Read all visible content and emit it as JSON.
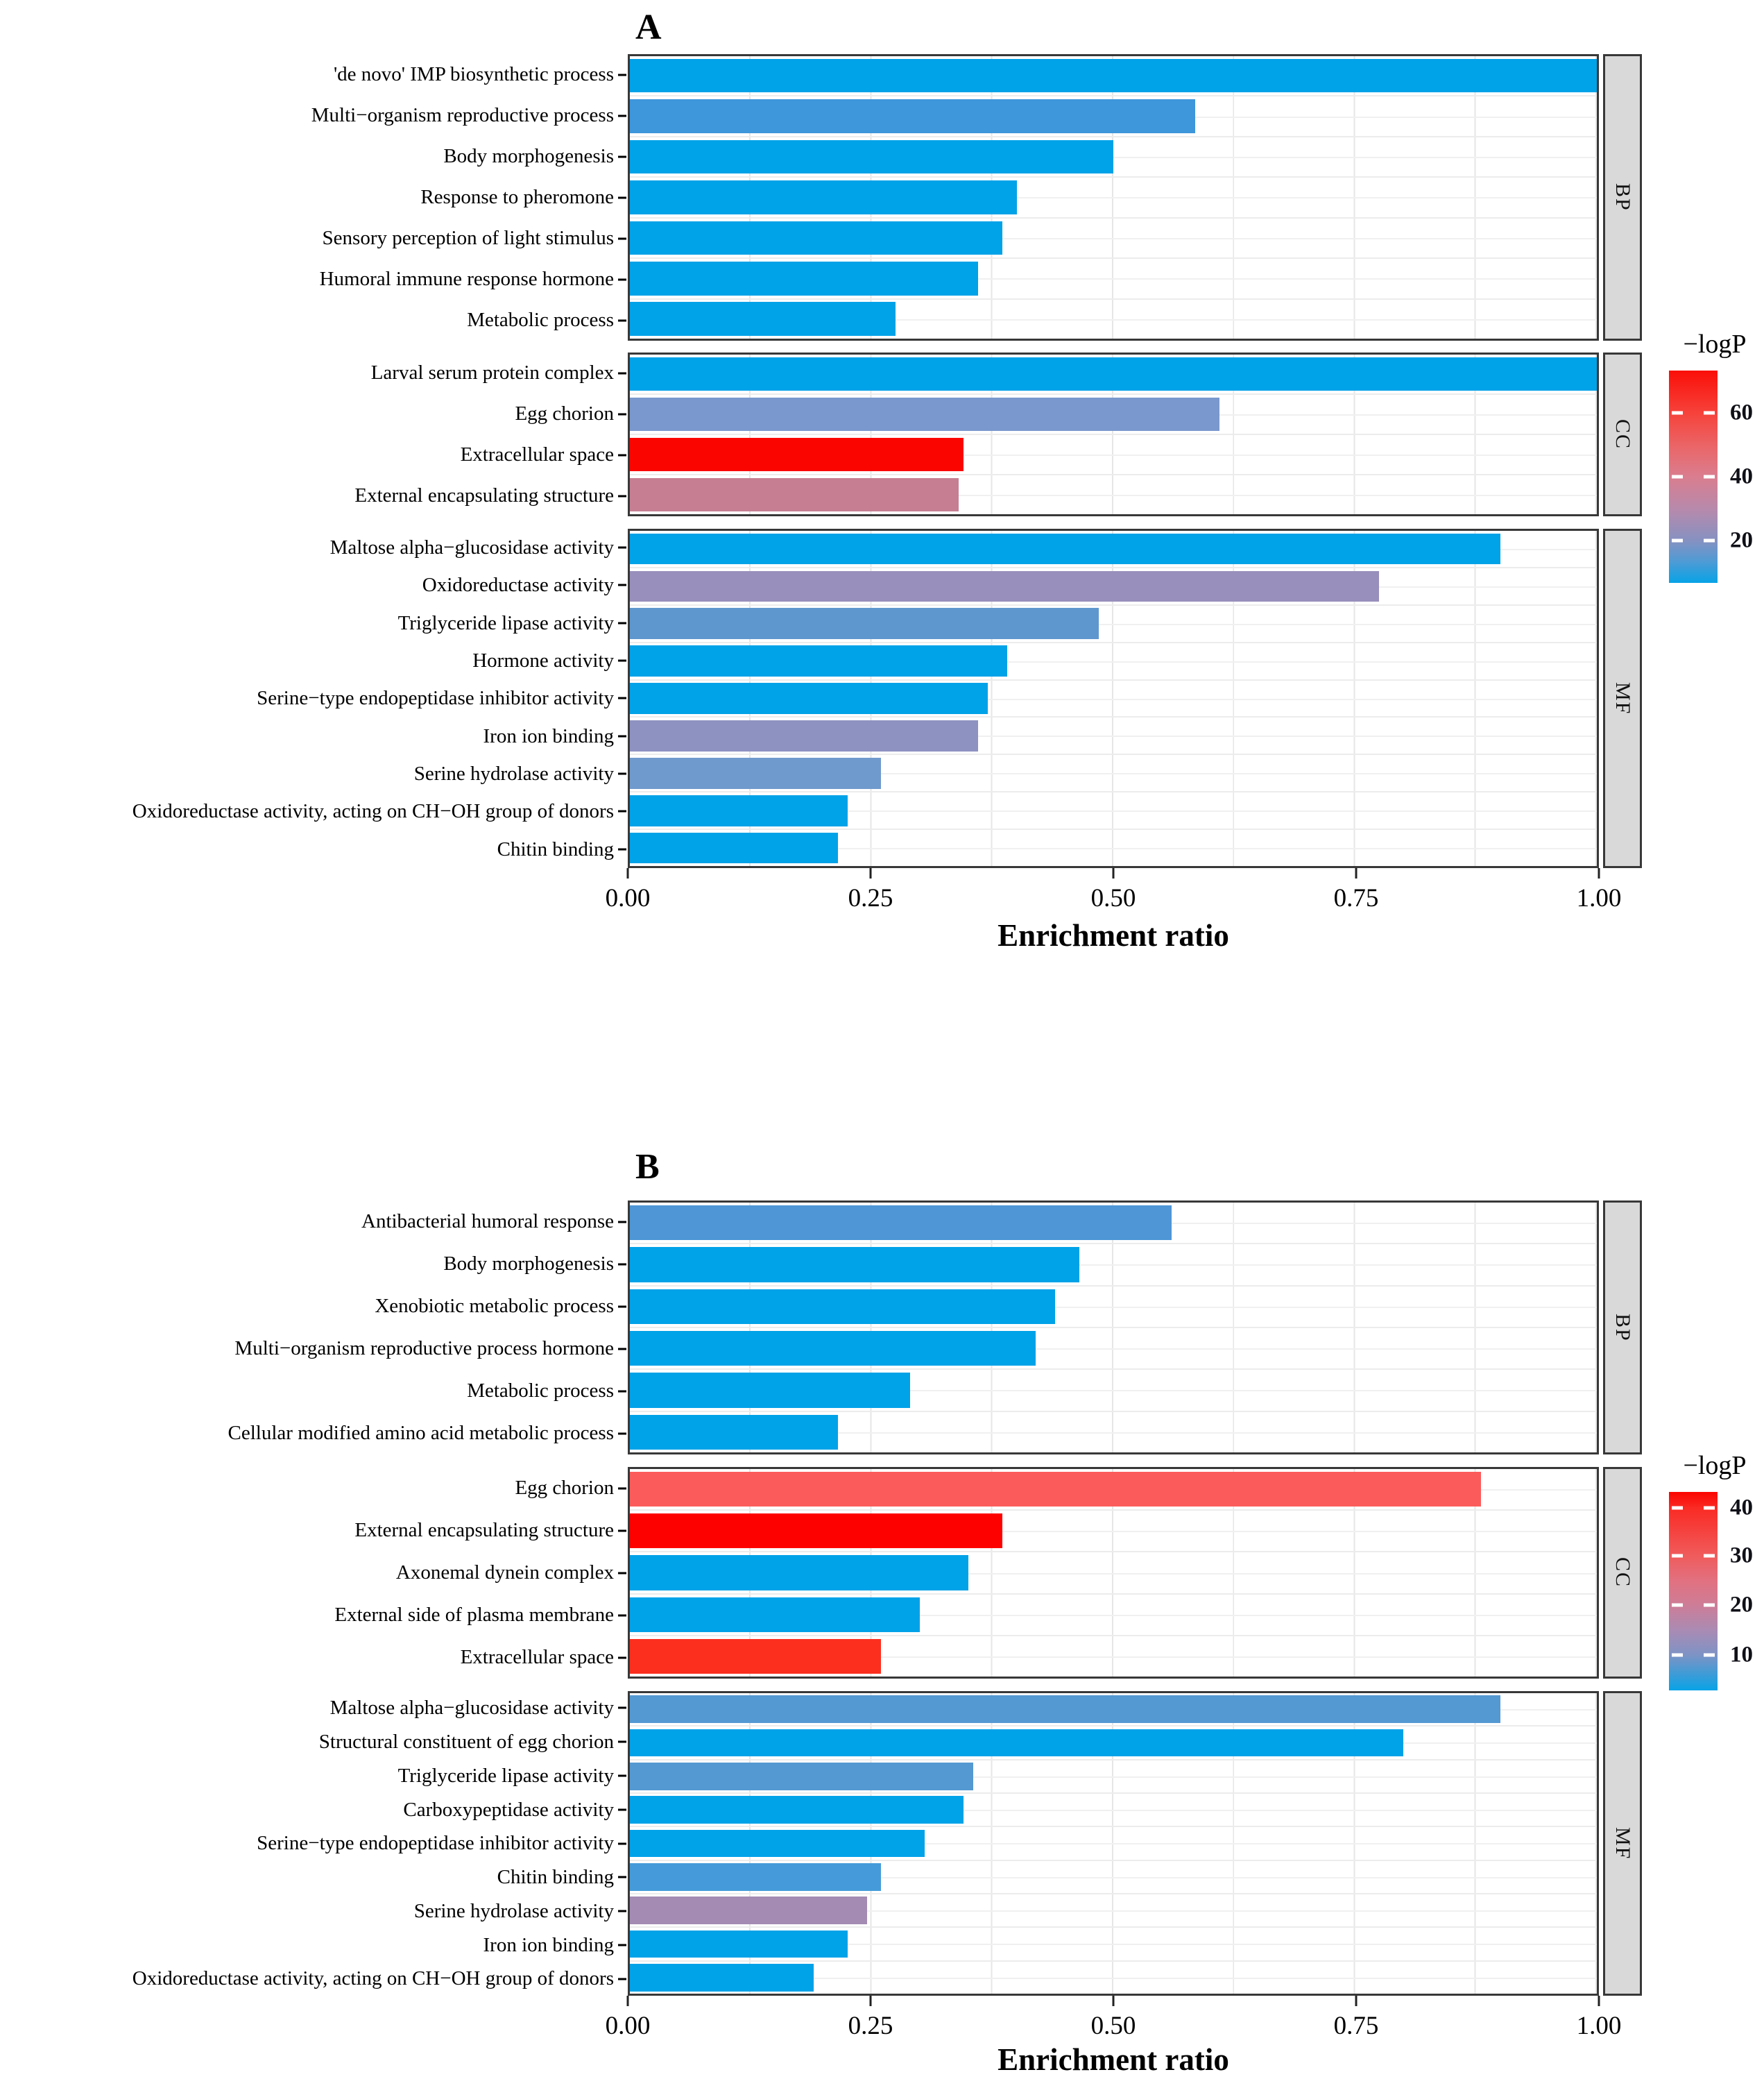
{
  "chart_data": [
    {
      "id": "A",
      "type": "bar",
      "orientation": "horizontal",
      "title": "A",
      "xlabel": "Enrichment ratio",
      "xlim": [
        0,
        1
      ],
      "grid": true,
      "x_ticks": [
        {
          "label": "0.00",
          "pos": 0
        },
        {
          "label": "0.25",
          "pos": 25
        },
        {
          "label": "0.50",
          "pos": 50
        },
        {
          "label": "0.75",
          "pos": 75
        },
        {
          "label": "1.00",
          "pos": 100
        }
      ],
      "legend": {
        "title": "−logP",
        "position": "right",
        "ticks": [
          {
            "label": "60",
            "pos": 20
          },
          {
            "label": "40",
            "pos": 50
          },
          {
            "label": "20",
            "pos": 80
          }
        ],
        "gradient": [
          {
            "color": "#fa0f08",
            "pos": 0
          },
          {
            "color": "#f6423b",
            "pos": 20
          },
          {
            "color": "#ea6668",
            "pos": 36
          },
          {
            "color": "#da7d8f",
            "pos": 50
          },
          {
            "color": "#b58aad",
            "pos": 66
          },
          {
            "color": "#8691c1",
            "pos": 80
          },
          {
            "color": "#4e9bd5",
            "pos": 90
          },
          {
            "color": "#07a3e6",
            "pos": 100
          }
        ]
      },
      "groups": [
        {
          "strip": "BP",
          "bars": [
            {
              "label": "'de novo' IMP biosynthetic process",
              "value": 1.0,
              "color": "#00a2e8"
            },
            {
              "label": "Multi−organism reproductive process",
              "value": 0.585,
              "color": "#3e96db"
            },
            {
              "label": "Body morphogenesis",
              "value": 0.5,
              "color": "#00a2e8"
            },
            {
              "label": "Response to pheromone",
              "value": 0.4,
              "color": "#00a2e8"
            },
            {
              "label": "Sensory perception of light stimulus",
              "value": 0.385,
              "color": "#00a2e8"
            },
            {
              "label": "Humoral immune response hormone",
              "value": 0.36,
              "color": "#00a2e8"
            },
            {
              "label": "Metabolic process",
              "value": 0.275,
              "color": "#00a2e8"
            }
          ]
        },
        {
          "strip": "CC",
          "bars": [
            {
              "label": "Larval serum protein complex",
              "value": 1.0,
              "color": "#00a2e8"
            },
            {
              "label": "Egg chorion",
              "value": 0.61,
              "color": "#7a98cd"
            },
            {
              "label": "Extracellular space",
              "value": 0.345,
              "color": "#fb0500"
            },
            {
              "label": "External encapsulating structure",
              "value": 0.34,
              "color": "#c67e93"
            }
          ]
        },
        {
          "strip": "MF",
          "bars": [
            {
              "label": "Maltose alpha−glucosidase activity",
              "value": 0.9,
              "color": "#00a2e8"
            },
            {
              "label": "Oxidoreductase activity",
              "value": 0.775,
              "color": "#998fbc"
            },
            {
              "label": "Triglyceride lipase activity",
              "value": 0.485,
              "color": "#5e97ce"
            },
            {
              "label": "Hormone activity",
              "value": 0.39,
              "color": "#00a2e8"
            },
            {
              "label": "Serine−type endopeptidase inhibitor activity",
              "value": 0.37,
              "color": "#00a2e8"
            },
            {
              "label": "Iron ion binding",
              "value": 0.36,
              "color": "#8e92c1"
            },
            {
              "label": "Serine hydrolase activity",
              "value": 0.26,
              "color": "#6f9acd"
            },
            {
              "label": "Oxidoreductase activity, acting on CH−OH group of donors",
              "value": 0.225,
              "color": "#00a2e8"
            },
            {
              "label": "Chitin binding",
              "value": 0.215,
              "color": "#00a2e8"
            }
          ]
        }
      ]
    },
    {
      "id": "B",
      "type": "bar",
      "orientation": "horizontal",
      "title": "B",
      "xlabel": "Enrichment ratio",
      "xlim": [
        0,
        1
      ],
      "grid": true,
      "x_ticks": [
        {
          "label": "0.00",
          "pos": 0
        },
        {
          "label": "0.25",
          "pos": 25
        },
        {
          "label": "0.50",
          "pos": 50
        },
        {
          "label": "0.75",
          "pos": 75
        },
        {
          "label": "1.00",
          "pos": 100
        }
      ],
      "legend": {
        "title": "−logP",
        "position": "right",
        "ticks": [
          {
            "label": "40",
            "pos": 8
          },
          {
            "label": "30",
            "pos": 32
          },
          {
            "label": "20",
            "pos": 57
          },
          {
            "label": "10",
            "pos": 82
          }
        ],
        "gradient": [
          {
            "color": "#fb0500",
            "pos": 0
          },
          {
            "color": "#fa2a24",
            "pos": 8
          },
          {
            "color": "#f05b5b",
            "pos": 32
          },
          {
            "color": "#e17181",
            "pos": 45
          },
          {
            "color": "#ce7d97",
            "pos": 57
          },
          {
            "color": "#a98bb4",
            "pos": 70
          },
          {
            "color": "#7e93c5",
            "pos": 82
          },
          {
            "color": "#08a3e6",
            "pos": 100
          }
        ]
      },
      "groups": [
        {
          "strip": "BP",
          "bars": [
            {
              "label": "Antibacterial humoral response",
              "value": 0.56,
              "color": "#4e96d5"
            },
            {
              "label": "Body morphogenesis",
              "value": 0.465,
              "color": "#00a2e8"
            },
            {
              "label": "Xenobiotic metabolic process",
              "value": 0.44,
              "color": "#00a2e8"
            },
            {
              "label": "Multi−organism reproductive process hormone",
              "value": 0.42,
              "color": "#00a2e8"
            },
            {
              "label": "Metabolic process",
              "value": 0.29,
              "color": "#00a2e8"
            },
            {
              "label": "Cellular modified amino acid metabolic process",
              "value": 0.215,
              "color": "#00a2e8"
            }
          ]
        },
        {
          "strip": "CC",
          "bars": [
            {
              "label": "Egg chorion",
              "value": 0.88,
              "color": "#fc5b5b"
            },
            {
              "label": "External encapsulating structure",
              "value": 0.385,
              "color": "#fd0100"
            },
            {
              "label": "Axonemal dynein complex",
              "value": 0.35,
              "color": "#00a2e8"
            },
            {
              "label": "External side of plasma membrane",
              "value": 0.3,
              "color": "#00a2e8"
            },
            {
              "label": "Extracellular space",
              "value": 0.26,
              "color": "#fc2f1f"
            }
          ]
        },
        {
          "strip": "MF",
          "bars": [
            {
              "label": "Maltose alpha−glucosidase activity",
              "value": 0.9,
              "color": "#5499d2"
            },
            {
              "label": "Structural constituent of egg chorion",
              "value": 0.8,
              "color": "#00a2e8"
            },
            {
              "label": "Triglyceride lipase activity",
              "value": 0.355,
              "color": "#5499d2"
            },
            {
              "label": "Carboxypeptidase activity",
              "value": 0.345,
              "color": "#00a2e8"
            },
            {
              "label": "Serine−type endopeptidase inhibitor activity",
              "value": 0.305,
              "color": "#00a2e8"
            },
            {
              "label": "Chitin binding",
              "value": 0.26,
              "color": "#459bd9"
            },
            {
              "label": "Serine hydrolase activity",
              "value": 0.245,
              "color": "#a38bb4"
            },
            {
              "label": "Iron ion binding",
              "value": 0.225,
              "color": "#00a2e8"
            },
            {
              "label": "Oxidoreductase activity, acting on CH−OH group of donors",
              "value": 0.19,
              "color": "#00a2e8"
            }
          ]
        }
      ]
    }
  ]
}
